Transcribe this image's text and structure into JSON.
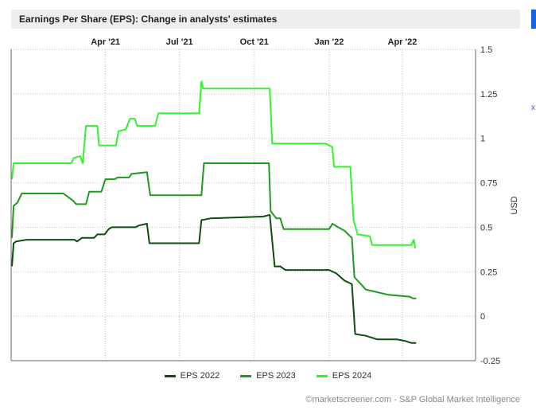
{
  "header": {
    "title": "Earnings Per Share (EPS): Change in analysts' estimates",
    "side_link": "x"
  },
  "colors": {
    "eps2022": "#0b4d0b",
    "eps2023": "#1f9a1f",
    "eps2024": "#2ef52e",
    "accent": "#1565e0"
  },
  "credit": "©marketscreener.com - S&P Global Market Intelligence",
  "chart_data": {
    "type": "line",
    "title": "Earnings Per Share (EPS): Change in analysts' estimates",
    "ylabel": "USD",
    "ylim": [
      -0.25,
      1.5
    ],
    "yticks": [
      1.5,
      1.25,
      1,
      0.75,
      0.5,
      0.25,
      0,
      -0.25
    ],
    "ytick_labels": [
      "1.5",
      "1.25",
      "1",
      "0.75",
      "0.5",
      "0.25",
      "0",
      "-0.25"
    ],
    "xlim": [
      "2020-12-06",
      "2022-06-30"
    ],
    "xticks": [
      "2021-04-01",
      "2021-07-01",
      "2021-10-01",
      "2022-01-01",
      "2022-04-01"
    ],
    "xtick_labels": [
      "Apr '21",
      "Jul '21",
      "Oct '21",
      "Jan '22",
      "Apr '22"
    ],
    "grid": true,
    "legend_position": "bottom",
    "series": [
      {
        "name": "EPS 2022",
        "points": [
          [
            "2020-12-07",
            0.28
          ],
          [
            "2020-12-09",
            0.41
          ],
          [
            "2020-12-12",
            0.42
          ],
          [
            "2020-12-25",
            0.43
          ],
          [
            "2021-02-22",
            0.43
          ],
          [
            "2021-02-25",
            0.42
          ],
          [
            "2021-03-03",
            0.44
          ],
          [
            "2021-03-18",
            0.44
          ],
          [
            "2021-03-22",
            0.46
          ],
          [
            "2021-03-31",
            0.46
          ],
          [
            "2021-04-05",
            0.49
          ],
          [
            "2021-04-09",
            0.5
          ],
          [
            "2021-05-08",
            0.5
          ],
          [
            "2021-05-12",
            0.51
          ],
          [
            "2021-05-22",
            0.52
          ],
          [
            "2021-05-25",
            0.41
          ],
          [
            "2021-07-25",
            0.41
          ],
          [
            "2021-07-28",
            0.54
          ],
          [
            "2021-08-08",
            0.55
          ],
          [
            "2021-10-12",
            0.56
          ],
          [
            "2021-10-20",
            0.57
          ],
          [
            "2021-10-26",
            0.28
          ],
          [
            "2021-11-02",
            0.28
          ],
          [
            "2021-11-08",
            0.26
          ],
          [
            "2022-01-01",
            0.26
          ],
          [
            "2022-01-10",
            0.24
          ],
          [
            "2022-01-20",
            0.2
          ],
          [
            "2022-01-29",
            0.18
          ],
          [
            "2022-02-02",
            -0.1
          ],
          [
            "2022-02-15",
            -0.11
          ],
          [
            "2022-03-01",
            -0.13
          ],
          [
            "2022-03-25",
            -0.13
          ],
          [
            "2022-04-05",
            -0.14
          ],
          [
            "2022-04-12",
            -0.15
          ],
          [
            "2022-04-18",
            -0.15
          ]
        ]
      },
      {
        "name": "EPS 2023",
        "points": [
          [
            "2020-12-07",
            0.44
          ],
          [
            "2020-12-09",
            0.62
          ],
          [
            "2020-12-14",
            0.64
          ],
          [
            "2020-12-19",
            0.69
          ],
          [
            "2021-02-08",
            0.69
          ],
          [
            "2021-02-14",
            0.67
          ],
          [
            "2021-02-20",
            0.65
          ],
          [
            "2021-02-24",
            0.63
          ],
          [
            "2021-03-08",
            0.63
          ],
          [
            "2021-03-12",
            0.7
          ],
          [
            "2021-03-27",
            0.7
          ],
          [
            "2021-04-01",
            0.77
          ],
          [
            "2021-04-12",
            0.77
          ],
          [
            "2021-04-16",
            0.78
          ],
          [
            "2021-04-30",
            0.78
          ],
          [
            "2021-05-03",
            0.8
          ],
          [
            "2021-05-22",
            0.81
          ],
          [
            "2021-05-26",
            0.68
          ],
          [
            "2021-07-28",
            0.68
          ],
          [
            "2021-07-31",
            0.86
          ],
          [
            "2021-10-19",
            0.86
          ],
          [
            "2021-10-21",
            0.59
          ],
          [
            "2021-10-28",
            0.55
          ],
          [
            "2021-11-02",
            0.55
          ],
          [
            "2021-11-06",
            0.49
          ],
          [
            "2022-01-01",
            0.49
          ],
          [
            "2022-01-05",
            0.52
          ],
          [
            "2022-01-12",
            0.5
          ],
          [
            "2022-01-20",
            0.48
          ],
          [
            "2022-01-29",
            0.44
          ],
          [
            "2022-02-01",
            0.22
          ],
          [
            "2022-02-15",
            0.15
          ],
          [
            "2022-03-15",
            0.12
          ],
          [
            "2022-04-10",
            0.11
          ],
          [
            "2022-04-14",
            0.1
          ],
          [
            "2022-04-18",
            0.1
          ]
        ]
      },
      {
        "name": "EPS 2024",
        "points": [
          [
            "2020-12-07",
            0.77
          ],
          [
            "2020-12-09",
            0.86
          ],
          [
            "2021-02-18",
            0.86
          ],
          [
            "2021-02-21",
            0.89
          ],
          [
            "2021-03-01",
            0.9
          ],
          [
            "2021-03-04",
            0.86
          ],
          [
            "2021-03-08",
            1.07
          ],
          [
            "2021-03-22",
            1.07
          ],
          [
            "2021-03-24",
            0.96
          ],
          [
            "2021-04-14",
            0.96
          ],
          [
            "2021-04-17",
            1.04
          ],
          [
            "2021-04-26",
            1.05
          ],
          [
            "2021-05-01",
            1.11
          ],
          [
            "2021-05-07",
            1.11
          ],
          [
            "2021-05-10",
            1.07
          ],
          [
            "2021-06-01",
            1.07
          ],
          [
            "2021-06-05",
            1.14
          ],
          [
            "2021-07-25",
            1.14
          ],
          [
            "2021-07-28",
            1.32
          ],
          [
            "2021-07-30",
            1.28
          ],
          [
            "2021-10-20",
            1.28
          ],
          [
            "2021-10-23",
            0.97
          ],
          [
            "2021-12-28",
            0.97
          ],
          [
            "2022-01-05",
            0.95
          ],
          [
            "2022-01-07",
            0.84
          ],
          [
            "2022-01-27",
            0.84
          ],
          [
            "2022-01-31",
            0.54
          ],
          [
            "2022-02-05",
            0.46
          ],
          [
            "2022-02-20",
            0.45
          ],
          [
            "2022-02-23",
            0.4
          ],
          [
            "2022-04-12",
            0.4
          ],
          [
            "2022-04-15",
            0.43
          ],
          [
            "2022-04-17",
            0.38
          ]
        ]
      }
    ]
  }
}
